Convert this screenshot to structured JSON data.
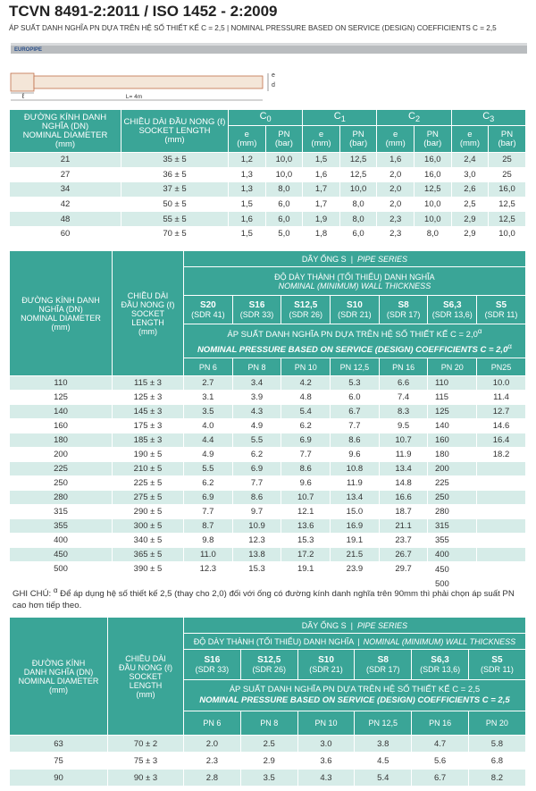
{
  "header": {
    "title": "TCVN 8491-2:2011 / ISO 1452 - 2:2009",
    "subtitle": "ÁP SUẤT DANH NGHĨA PN DỰA TRÊN HỆ SỐ THIẾT KẾ C = 2,5 | NOMINAL PRESSURE BASED ON SERVICE (DESIGN) COEFFICIENTS C = 2,5"
  },
  "diagram": {
    "brand": "EUROPIPE",
    "length": "L= 4m",
    "socket": "ℓ",
    "thickness": "e",
    "diameter": "d"
  },
  "table1": {
    "dn_header": "ĐƯỜNG KÍNH DANH\nNGHĨA (DN)\nNOMINAL DIAMETER\n(mm)",
    "socket_header": "CHIỀU DÀI ĐẦU NONG (ℓ)\nSOCKET LENGTH\n(mm)",
    "groups": [
      {
        "letter": "C",
        "sub": "0"
      },
      {
        "letter": "C",
        "sub": "1"
      },
      {
        "letter": "C",
        "sub": "2"
      },
      {
        "letter": "C",
        "sub": "3"
      }
    ],
    "sub_headers": [
      "e\n(mm)",
      "PN\n(bar)"
    ],
    "rows": [
      [
        "21",
        "35 ± 5",
        "1,2",
        "10,0",
        "1,5",
        "12,5",
        "1,6",
        "16,0",
        "2,4",
        "25"
      ],
      [
        "27",
        "36 ± 5",
        "1,3",
        "10,0",
        "1,6",
        "12,5",
        "2,0",
        "16,0",
        "3,0",
        "25"
      ],
      [
        "34",
        "37 ± 5",
        "1,3",
        "8,0",
        "1,7",
        "10,0",
        "2,0",
        "12,5",
        "2,6",
        "16,0"
      ],
      [
        "42",
        "50 ± 5",
        "1,5",
        "6,0",
        "1,7",
        "8,0",
        "2,0",
        "10,0",
        "2,5",
        "12,5"
      ],
      [
        "48",
        "55 ± 5",
        "1,6",
        "6,0",
        "1,9",
        "8,0",
        "2,3",
        "10,0",
        "2,9",
        "12,5"
      ],
      [
        "60",
        "70 ± 5",
        "1,5",
        "5,0",
        "1,8",
        "6,0",
        "2,3",
        "8,0",
        "2,9",
        "10,0"
      ]
    ]
  },
  "table2": {
    "dn_header": "ĐƯỜNG KÍNH DANH\nNGHĨA (DN)\nNOMINAL DIAMETER\n(mm)",
    "socket_header": "CHIỀU DÀI\nĐẦU NONG (ℓ)\nSOCKET\nLENGTH\n(mm)",
    "series_label": "DÃY ỐNG S",
    "separator": "|",
    "series_label_en": "PIPE SERIES",
    "wall": "ĐỘ DÀY THÀNH (TỐI THIỂU) DANH NGHĨA",
    "wall_en": "NOMINAL (MINIMUM) WALL THICKNESS",
    "series": [
      {
        "s": "S20",
        "sdr": "(SDR 41)"
      },
      {
        "s": "S16",
        "sdr": "(SDR 33)"
      },
      {
        "s": "S12,5",
        "sdr": "(SDR 26)"
      },
      {
        "s": "S10",
        "sdr": "(SDR 21)"
      },
      {
        "s": "S8",
        "sdr": "(SDR 17)"
      },
      {
        "s": "S6,3",
        "sdr": "(SDR 13,6)"
      },
      {
        "s": "S5",
        "sdr": "(SDR 11)"
      }
    ],
    "pressure": "ÁP SUẤT DANH NGHĨA PN DỰA TRÊN HỆ SỐ THIẾT KẾ C = 2,0",
    "pressure_en": "NOMINAL PRESSURE BASED ON SERVICE (DESIGN) COEFFICIENTS C = 2,0",
    "mark": "α",
    "pn": [
      "PN 6",
      "PN 8",
      "PN 10",
      "PN 12,5",
      "PN 16",
      "PN 20",
      "PN25"
    ],
    "rows": [
      [
        "110",
        "115 ± 3",
        "2.7",
        "3.4",
        "4.2",
        "5.3",
        "6.6",
        "10.0"
      ],
      [
        "125",
        "125 ± 3",
        "3.1",
        "3.9",
        "4.8",
        "6.0",
        "7.4",
        "11.4"
      ],
      [
        "140",
        "145 ± 3",
        "3.5",
        "4.3",
        "5.4",
        "6.7",
        "8.3",
        "12.7"
      ],
      [
        "160",
        "175 ± 3",
        "4.0",
        "4.9",
        "6.2",
        "7.7",
        "9.5",
        "14.6"
      ],
      [
        "180",
        "185 ± 3",
        "4.4",
        "5.5",
        "6.9",
        "8.6",
        "10.7",
        "16.4"
      ],
      [
        "200",
        "190 ± 5",
        "4.9",
        "6.2",
        "7.7",
        "9.6",
        "11.9",
        "18.2"
      ],
      [
        "225",
        "210 ± 5",
        "5.5",
        "6.9",
        "8.6",
        "10.8",
        "13.4"
      ],
      [
        "250",
        "225 ± 5",
        "6.2",
        "7.7",
        "9.6",
        "11.9",
        "14.8"
      ],
      [
        "280",
        "275 ± 5",
        "6.9",
        "8.6",
        "10.7",
        "13.4",
        "16.6"
      ],
      [
        "315",
        "290 ± 5",
        "7.7",
        "9.7",
        "12.1",
        "15.0",
        "18.7"
      ],
      [
        "355",
        "300 ± 5",
        "8.7",
        "10.9",
        "13.6",
        "16.9",
        "21.1"
      ],
      [
        "400",
        "340 ± 5",
        "9.8",
        "12.3",
        "15.3",
        "19.1",
        "23.7"
      ],
      [
        "450",
        "365 ± 5",
        "11.0",
        "13.8",
        "17.2",
        "21.5",
        "26.7"
      ],
      [
        "500",
        "390 ± 5",
        "12.3",
        "15.3",
        "19.1",
        "23.9",
        "29.7"
      ]
    ],
    "pn20_column": [
      "110",
      "115",
      "125",
      "140",
      "160",
      "180",
      "200",
      "225",
      "250",
      "280",
      "315",
      "355",
      "400",
      "450",
      "500"
    ]
  },
  "note": {
    "label": "GHI CHÚ:",
    "mark": "α",
    "text": "Để áp dụng hệ số thiết kế 2,5 (thay cho 2,0) đối với ống có đường kính danh nghĩa trên 90mm thì phải chọn áp suất PN cao hơn tiếp theo."
  },
  "table3": {
    "dn_header": "ĐƯỜNG KÍNH\nDANH NGHĨA (DN)\nNOMINAL DIAMETER\n(mm)",
    "socket_header": "CHIỀU DÀI\nĐẦU NONG (ℓ)\nSOCKET\nLENGTH\n(mm)",
    "series_label": "DÃY ỐNG S",
    "separator": "|",
    "series_label_en": "PIPE SERIES",
    "wall": "ĐỘ DÀY THÀNH (TỐI THIỂU) DANH NGHĨA",
    "wall_en": "NOMINAL (MINIMUM) WALL THICKNESS",
    "series": [
      {
        "s": "S16",
        "sdr": "(SDR 33)"
      },
      {
        "s": "S12,5",
        "sdr": "(SDR 26)"
      },
      {
        "s": "S10",
        "sdr": "(SDR 21)"
      },
      {
        "s": "S8",
        "sdr": "(SDR 17)"
      },
      {
        "s": "S6,3",
        "sdr": "(SDR 13,6)"
      },
      {
        "s": "S5",
        "sdr": "(SDR 11)"
      }
    ],
    "pressure": "ÁP SUẤT DANH NGHĨA PN DỰA TRÊN HỆ SỐ THIẾT KẾ C = 2,5",
    "pressure_en": "NOMINAL PRESSURE BASED ON SERVICE (DESIGN) COEFFICIENTS C = 2,5",
    "pn": [
      "PN 6",
      "PN 8",
      "PN 10",
      "PN 12,5",
      "PN 16",
      "PN 20"
    ],
    "rows": [
      [
        "63",
        "70 ± 2",
        "2.0",
        "2.5",
        "3.0",
        "3.8",
        "4.7",
        "5.8"
      ],
      [
        "75",
        "75 ± 3",
        "2.3",
        "2.9",
        "3.6",
        "4.5",
        "5.6",
        "6.8"
      ],
      [
        "90",
        "90 ± 3",
        "2.8",
        "3.5",
        "4.3",
        "5.4",
        "6.7",
        "8.2"
      ]
    ]
  }
}
